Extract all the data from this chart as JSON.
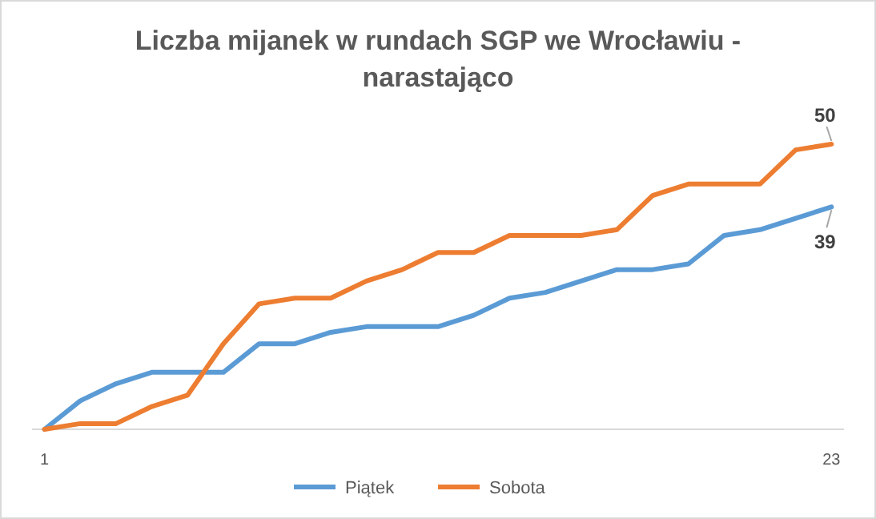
{
  "chart_data": {
    "type": "line",
    "title": "Liczba mijanek w rundach SGP we Wrocławiu - narastająco",
    "x": [
      1,
      2,
      3,
      4,
      5,
      6,
      7,
      8,
      9,
      10,
      11,
      12,
      13,
      14,
      15,
      16,
      17,
      18,
      19,
      20,
      21,
      22,
      23
    ],
    "series": [
      {
        "name": "Piątek",
        "color": "#5b9bd5",
        "values": [
          0,
          5,
          8,
          10,
          10,
          10,
          15,
          15,
          17,
          18,
          18,
          18,
          20,
          23,
          24,
          26,
          28,
          28,
          29,
          34,
          35,
          37,
          39
        ],
        "value_labels": [
          null,
          null,
          null,
          null,
          null,
          null,
          null,
          null,
          null,
          null,
          null,
          null,
          null,
          null,
          null,
          null,
          null,
          null,
          null,
          null,
          null,
          null,
          "39"
        ]
      },
      {
        "name": "Sobota",
        "color": "#ed7d31",
        "values": [
          0,
          1,
          1,
          4,
          6,
          15,
          22,
          23,
          23,
          26,
          28,
          31,
          31,
          34,
          34,
          34,
          35,
          41,
          43,
          43,
          43,
          49,
          50
        ],
        "value_labels": [
          null,
          null,
          null,
          null,
          null,
          null,
          null,
          null,
          null,
          null,
          null,
          null,
          null,
          null,
          null,
          null,
          null,
          null,
          null,
          null,
          null,
          null,
          "50"
        ]
      }
    ],
    "xlim": [
      0.65,
      23.35
    ],
    "xticks": [
      1,
      23
    ],
    "tick_labels": "x",
    "grid": false,
    "legend": "bottom",
    "marker": "none",
    "line_style": "solid"
  }
}
